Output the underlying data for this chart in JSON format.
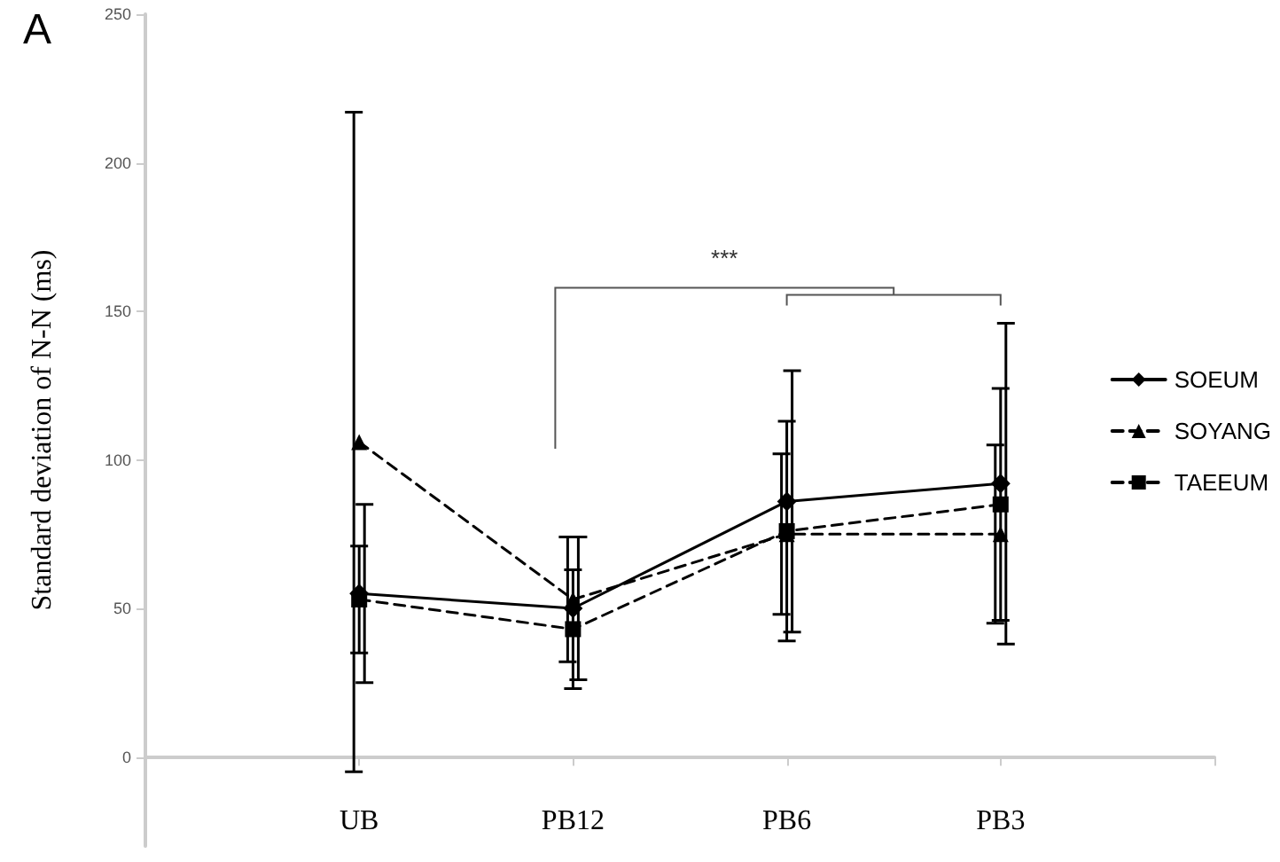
{
  "chart_data": {
    "type": "line",
    "title": "A",
    "ylabel": "Standard deviation of N-N (ms)",
    "categories": [
      "UB",
      "PB12",
      "PB6",
      "PB3"
    ],
    "series": [
      {
        "name": "SOEUM",
        "color": "#000000",
        "marker": "diamond",
        "line_style": "solid",
        "values": [
          55,
          50,
          86,
          92
        ],
        "errors": [
          30,
          24,
          44,
          54
        ]
      },
      {
        "name": "SOYANG",
        "color": "#000000",
        "marker": "triangle",
        "line_style": "dashed",
        "values": [
          106,
          53,
          75,
          75
        ],
        "errors": [
          111,
          21,
          27,
          30
        ]
      },
      {
        "name": "TAEEUM",
        "color": "#000000",
        "marker": "square",
        "line_style": "dashed",
        "values": [
          53,
          43,
          76,
          85
        ],
        "errors": [
          18,
          20,
          37,
          39
        ]
      }
    ],
    "ylim": [
      -30,
      250
    ],
    "yticks": [
      0,
      50,
      100,
      150,
      200,
      250
    ],
    "grid": false,
    "legend": "right",
    "annotations": [
      "***"
    ]
  }
}
